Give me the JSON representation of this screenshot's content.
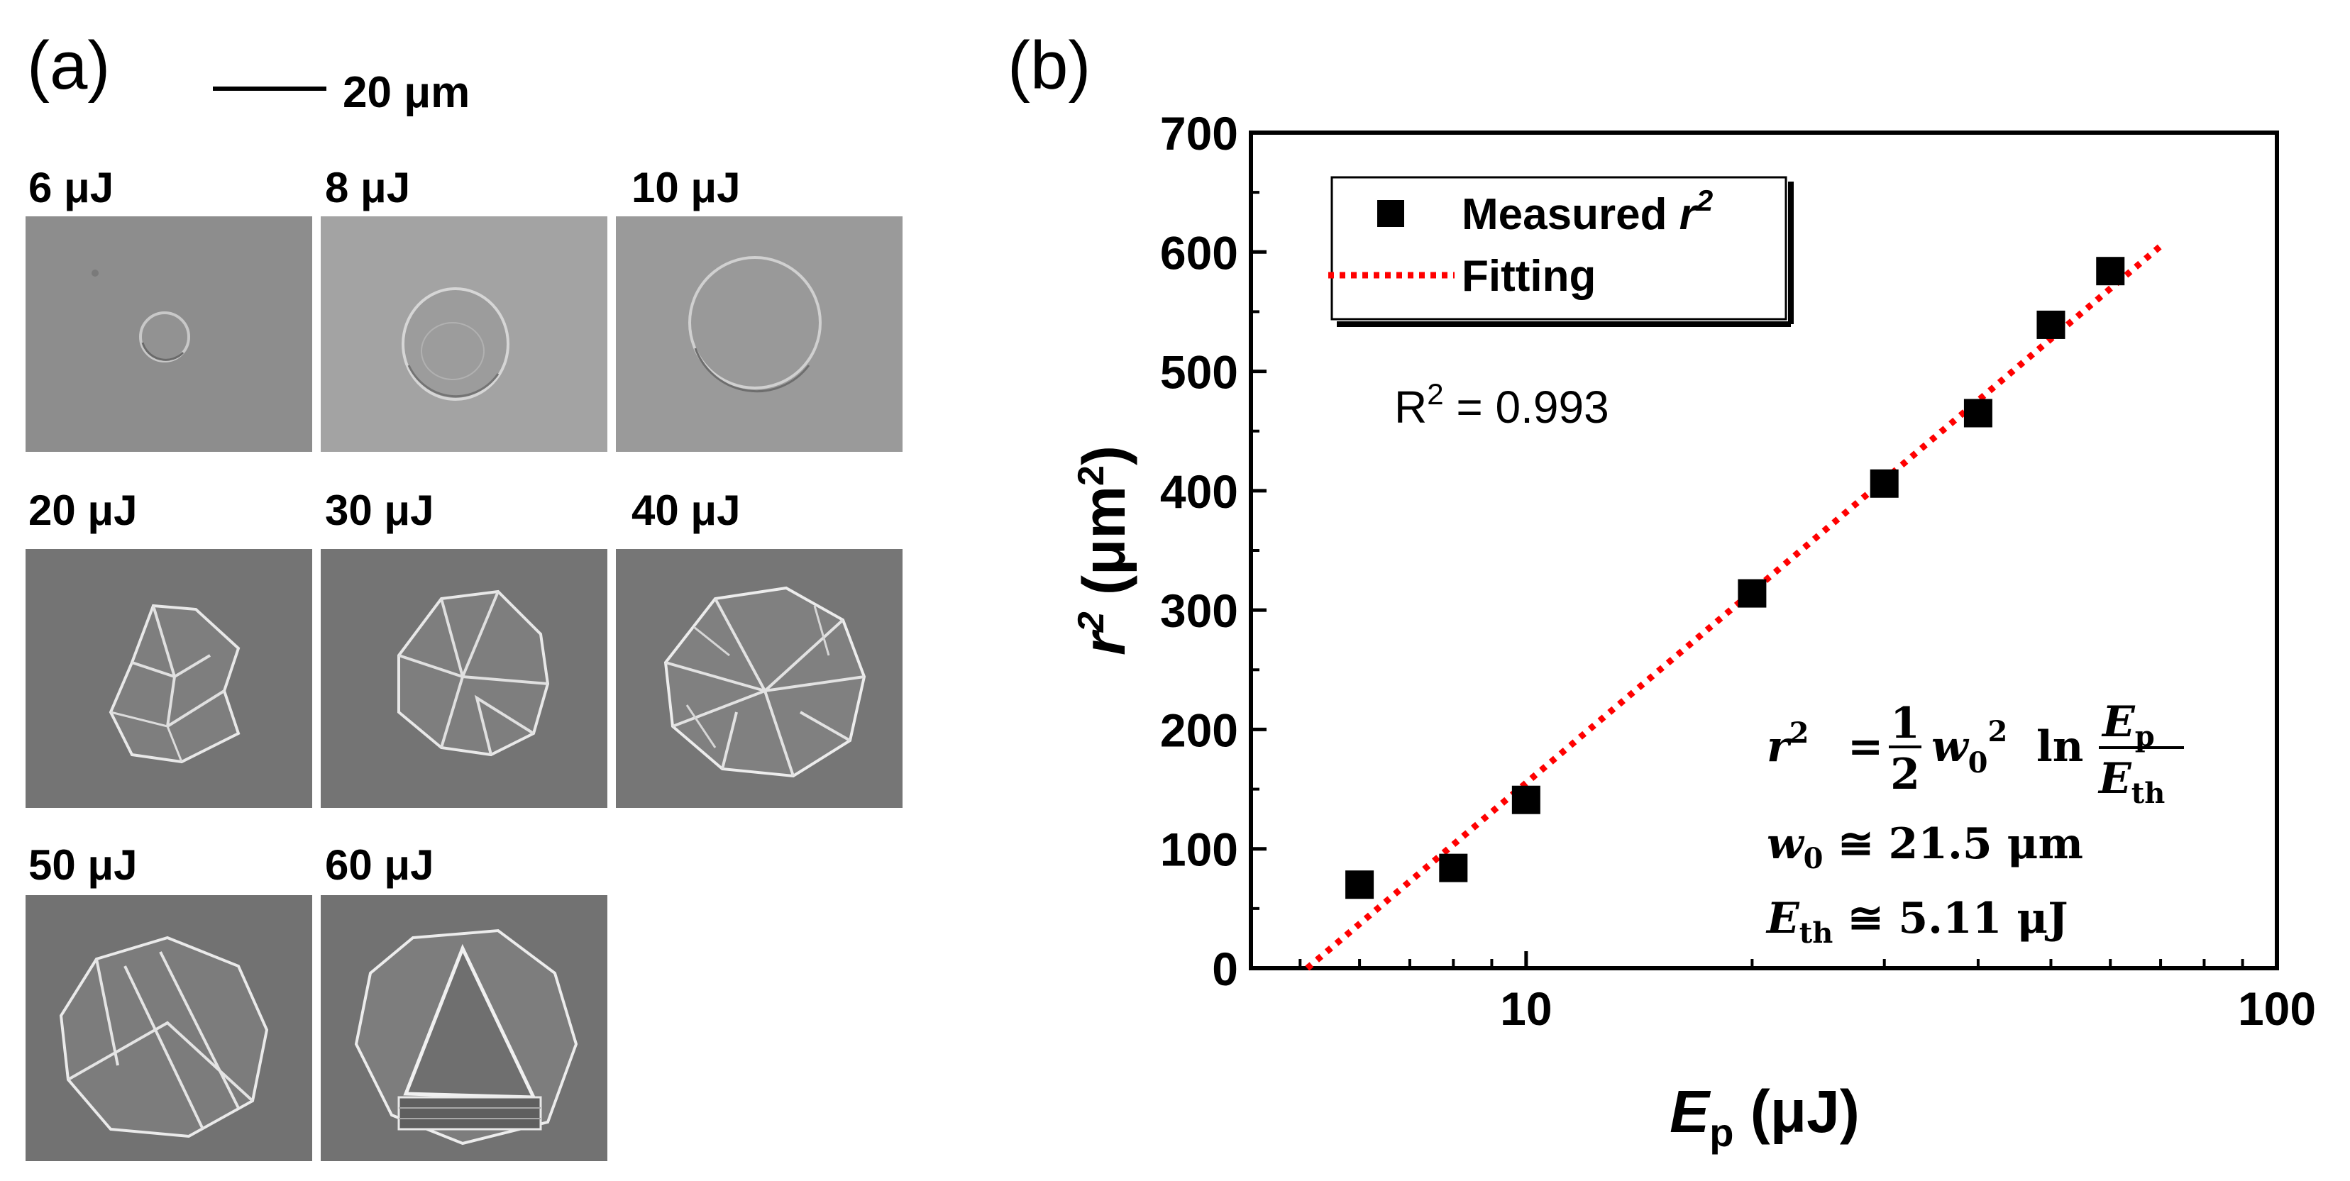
{
  "panel_a": {
    "letter": "(a)",
    "scale_bar_label": "20 μm",
    "tiles": [
      {
        "label": "6 μJ",
        "kind": "small-circle"
      },
      {
        "label": "8 μJ",
        "kind": "medium-circle"
      },
      {
        "label": "10 μJ",
        "kind": "large-circle"
      },
      {
        "label": "20 μJ",
        "kind": "cracked"
      },
      {
        "label": "30 μJ",
        "kind": "cracked"
      },
      {
        "label": "40 μJ",
        "kind": "cracked"
      },
      {
        "label": "50 μJ",
        "kind": "cracked"
      },
      {
        "label": "60 μJ",
        "kind": "cracked"
      }
    ]
  },
  "panel_b": {
    "letter": "(b)"
  },
  "chart_data": {
    "type": "scatter",
    "x_scale": "log",
    "xlabel_main": "E",
    "xlabel_sub": "p",
    "xlabel_unit": "(μJ)",
    "ylabel_main": "r",
    "ylabel_sup": "2",
    "ylabel_unit_pre": "(μm",
    "ylabel_unit_sup": "2",
    "ylabel_unit_post": ")",
    "xlim": [
      4.3,
      100
    ],
    "ylim": [
      0,
      700
    ],
    "x_ticks": [
      10,
      100
    ],
    "x_tick_labels": [
      "10",
      "100"
    ],
    "y_ticks": [
      0,
      100,
      200,
      300,
      400,
      500,
      600,
      700
    ],
    "y_tick_labels": [
      "0",
      "100",
      "200",
      "300",
      "400",
      "500",
      "600",
      "700"
    ],
    "series": [
      {
        "name": "Measured r 2",
        "marker": "square",
        "color": "#000000",
        "x": [
          6,
          8,
          10,
          20,
          30,
          40,
          50,
          60
        ],
        "y": [
          70,
          84,
          141,
          314,
          406,
          465,
          539,
          584
        ]
      },
      {
        "name": "Fitting",
        "style": "dotted",
        "color": "#ff0000",
        "x": [
          5.11,
          70
        ],
        "y": [
          0,
          605
        ]
      }
    ],
    "legend": {
      "position": "top-left",
      "measured_main": "Measured ",
      "measured_r": "r",
      "measured_sup": "2",
      "fitting": "Fitting"
    },
    "annotations": {
      "r_squared_main": "R",
      "r_squared_sup": "2",
      "r_squared_value": " = 0.993",
      "eq_lhs": "r",
      "eq_lhs_sup": "2",
      "eq_equals": "=",
      "eq_frac_num": "1",
      "eq_frac_den": "2",
      "eq_w": "w",
      "eq_w_sub": "0",
      "eq_w_sup": "2",
      "eq_ln": "ln",
      "eq_num_main": "E",
      "eq_num_sub": "p",
      "eq_den_main": "E",
      "eq_den_sub": "th",
      "w0_main": "w",
      "w0_sub": "0",
      "w0_value": " ≅ 21.5 μm",
      "eth_main": "E",
      "eth_sub": "th",
      "eth_value": " ≅ 5.11 μJ"
    }
  }
}
